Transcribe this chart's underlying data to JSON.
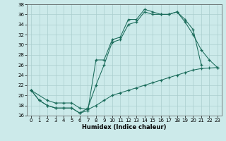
{
  "xlabel": "Humidex (Indice chaleur)",
  "bg_color": "#cceaea",
  "grid_color": "#aacece",
  "line_color": "#1a6b5a",
  "xlim": [
    -0.5,
    23.5
  ],
  "ylim": [
    16,
    38
  ],
  "xticks": [
    0,
    1,
    2,
    3,
    4,
    5,
    6,
    7,
    8,
    9,
    10,
    11,
    12,
    13,
    14,
    15,
    16,
    17,
    18,
    19,
    20,
    21,
    22,
    23
  ],
  "yticks": [
    16,
    18,
    20,
    22,
    24,
    26,
    28,
    30,
    32,
    34,
    36,
    38
  ],
  "series1_x": [
    0,
    1,
    2,
    3,
    4,
    5,
    6,
    7,
    8,
    9,
    10,
    11,
    12,
    13,
    14,
    15,
    16,
    17,
    18,
    19,
    20,
    21
  ],
  "series1_y": [
    21,
    19,
    18,
    17.5,
    17.5,
    17.5,
    16.5,
    17,
    27,
    27,
    31,
    31.5,
    35,
    35,
    37,
    36.5,
    36,
    36,
    36.5,
    35,
    33,
    26
  ],
  "series2_x": [
    0,
    1,
    2,
    3,
    4,
    5,
    6,
    7,
    8,
    9,
    10,
    11,
    12,
    13,
    14,
    15,
    16,
    17,
    18,
    19,
    20,
    21,
    22,
    23
  ],
  "series2_y": [
    21,
    19,
    18,
    17.5,
    17.5,
    17.5,
    16.5,
    17.5,
    22,
    26,
    30.5,
    31,
    34,
    34.5,
    36.5,
    36,
    36,
    36,
    36.5,
    34.5,
    32,
    29,
    27,
    25.5
  ],
  "series3_x": [
    0,
    2,
    3,
    4,
    5,
    6,
    7,
    8,
    9,
    10,
    11,
    12,
    13,
    14,
    15,
    16,
    17,
    18,
    19,
    20,
    21,
    22,
    23
  ],
  "series3_y": [
    21,
    19,
    18.5,
    18.5,
    18.5,
    17.5,
    17.2,
    18,
    19,
    20,
    20.5,
    21,
    21.5,
    22,
    22.5,
    23,
    23.5,
    24,
    24.5,
    25,
    25.3,
    25.4,
    25.5
  ]
}
